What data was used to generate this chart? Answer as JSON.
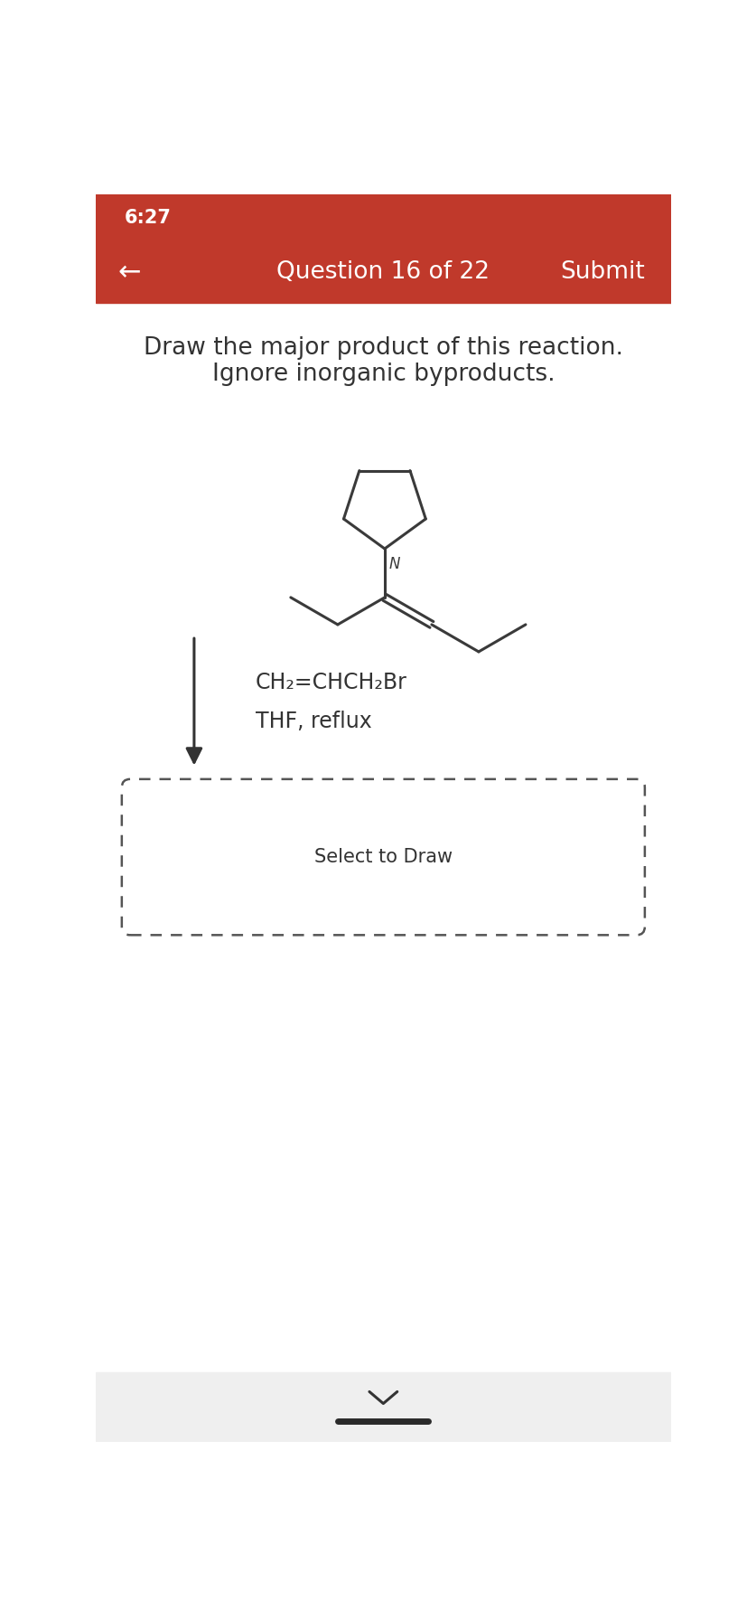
{
  "bg_color": "#ffffff",
  "header_color": "#c0392b",
  "status_bar_color": "#c0392b",
  "time_text": "6:27",
  "question_text": "Question 16 of 22",
  "submit_text": "Submit",
  "back_arrow": "←",
  "instruction_line1": "Draw the major product of this reaction.",
  "instruction_line2": "Ignore inorganic byproducts.",
  "reagent_line1": "CH₂=CHCH₂Br",
  "reagent_line2": "THF, reflux",
  "select_text": "Select to Draw",
  "text_color": "#333333",
  "molecule_color": "#3a3a3a",
  "dashed_box_color": "#555555",
  "chevron_color": "#333333",
  "font_size_time": 15,
  "font_size_nav": 19,
  "font_size_instruction": 19,
  "font_size_reagent": 17,
  "font_size_select": 15,
  "font_size_N": 12
}
